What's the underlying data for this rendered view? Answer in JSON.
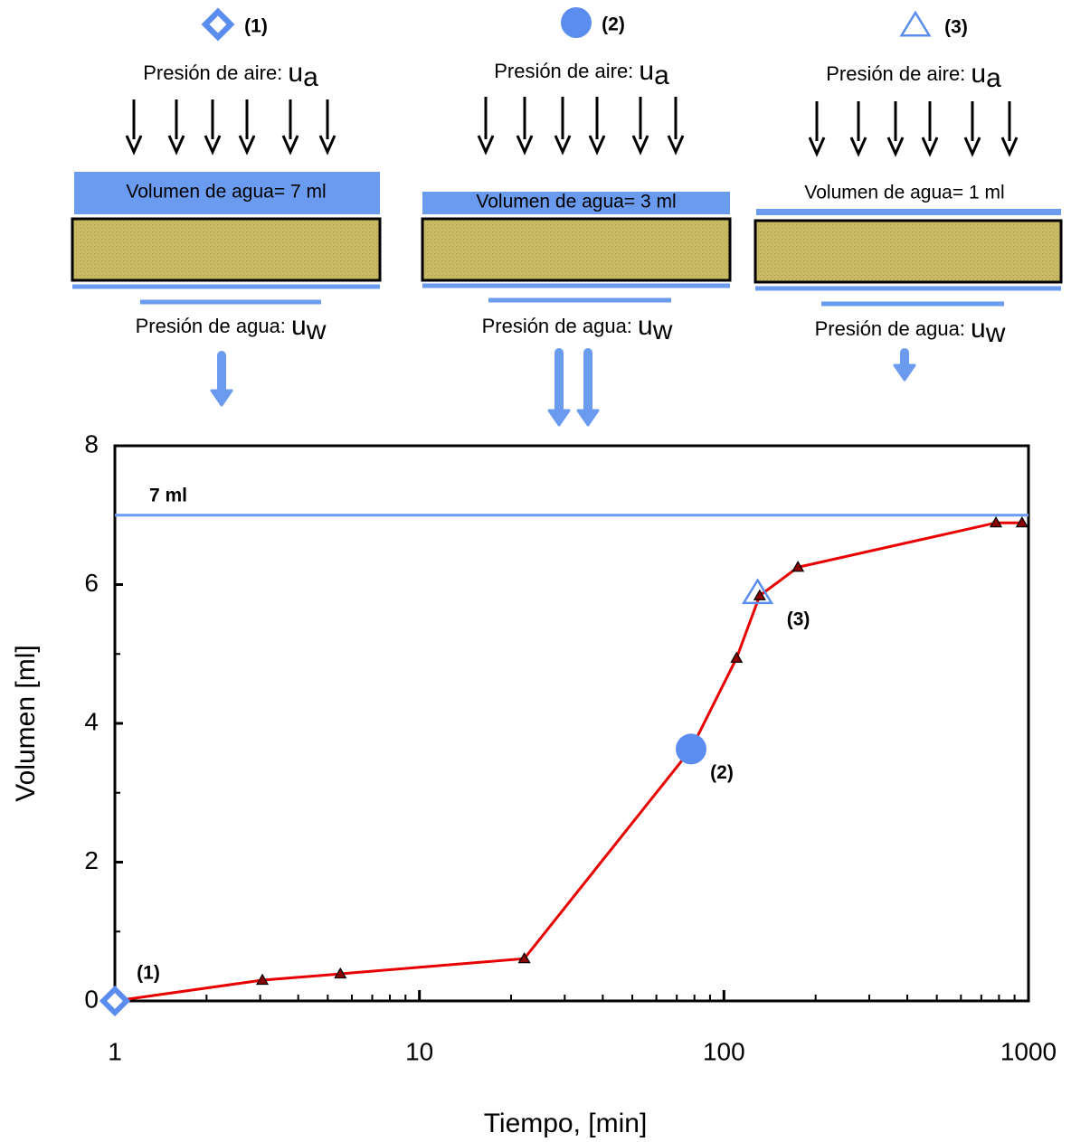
{
  "diagram": {
    "panels": [
      {
        "label": "(1)",
        "air_text": "Presión de aire: ",
        "air_symbol": "u",
        "air_sub": "a",
        "water_volume": "Volumen de agua= 7 ml",
        "water_text": "Presión de agua: ",
        "water_symbol": "u",
        "water_sub": "w"
      },
      {
        "label": "(2)",
        "air_text": "Presión de aire: ",
        "air_symbol": "u",
        "air_sub": "a",
        "water_volume": "Volumen de agua= 3 ml",
        "water_text": "Presión de agua: ",
        "water_symbol": "u",
        "water_sub": "w"
      },
      {
        "label": "(3)",
        "air_text": "Presión de aire: ",
        "air_symbol": "u",
        "air_sub": "a",
        "water_volume": "Volumen de agua= 1 ml",
        "water_text": "Presión de agua: ",
        "water_symbol": "u",
        "water_sub": "w"
      }
    ]
  },
  "chart_data": {
    "type": "line",
    "xlabel": "Tiempo, [min]",
    "ylabel": "Volumen [ml]",
    "xscale": "log",
    "xlim": [
      1,
      1000
    ],
    "ylim": [
      0,
      8
    ],
    "xticks": [
      1,
      10,
      100,
      1000
    ],
    "yticks": [
      0,
      2,
      4,
      6,
      8
    ],
    "xminorticks": [
      2,
      3,
      4,
      5,
      6,
      7,
      8,
      9,
      20,
      30,
      40,
      50,
      60,
      70,
      80,
      90,
      200,
      300,
      400,
      500,
      600,
      700,
      800,
      900
    ],
    "yminorticks": [
      1,
      3,
      5,
      7
    ],
    "series": [
      {
        "color": "#e80000",
        "marker": "triangle",
        "marker_color": "#8b0000",
        "x": [
          1,
          3.05,
          5.5,
          22.1,
          78,
          110,
          131,
          175,
          782,
          952
        ],
        "values": [
          0,
          0.3,
          0.39,
          0.61,
          3.63,
          4.94,
          5.84,
          6.25,
          6.89,
          6.89
        ]
      }
    ],
    "reference_line": {
      "value": 7,
      "label": "7 ml",
      "color": "#6a9bef"
    },
    "points": [
      {
        "label": "(1)",
        "x": 1,
        "value": 0,
        "marker": "diamond",
        "color": "#5b8def"
      },
      {
        "label": "(2)",
        "x": 78,
        "value": 3.63,
        "marker": "circle",
        "color": "#5b8def"
      },
      {
        "label": "(3)",
        "x": 129,
        "value": 5.88,
        "marker": "triangle-open",
        "color": "#5b8def"
      }
    ]
  }
}
